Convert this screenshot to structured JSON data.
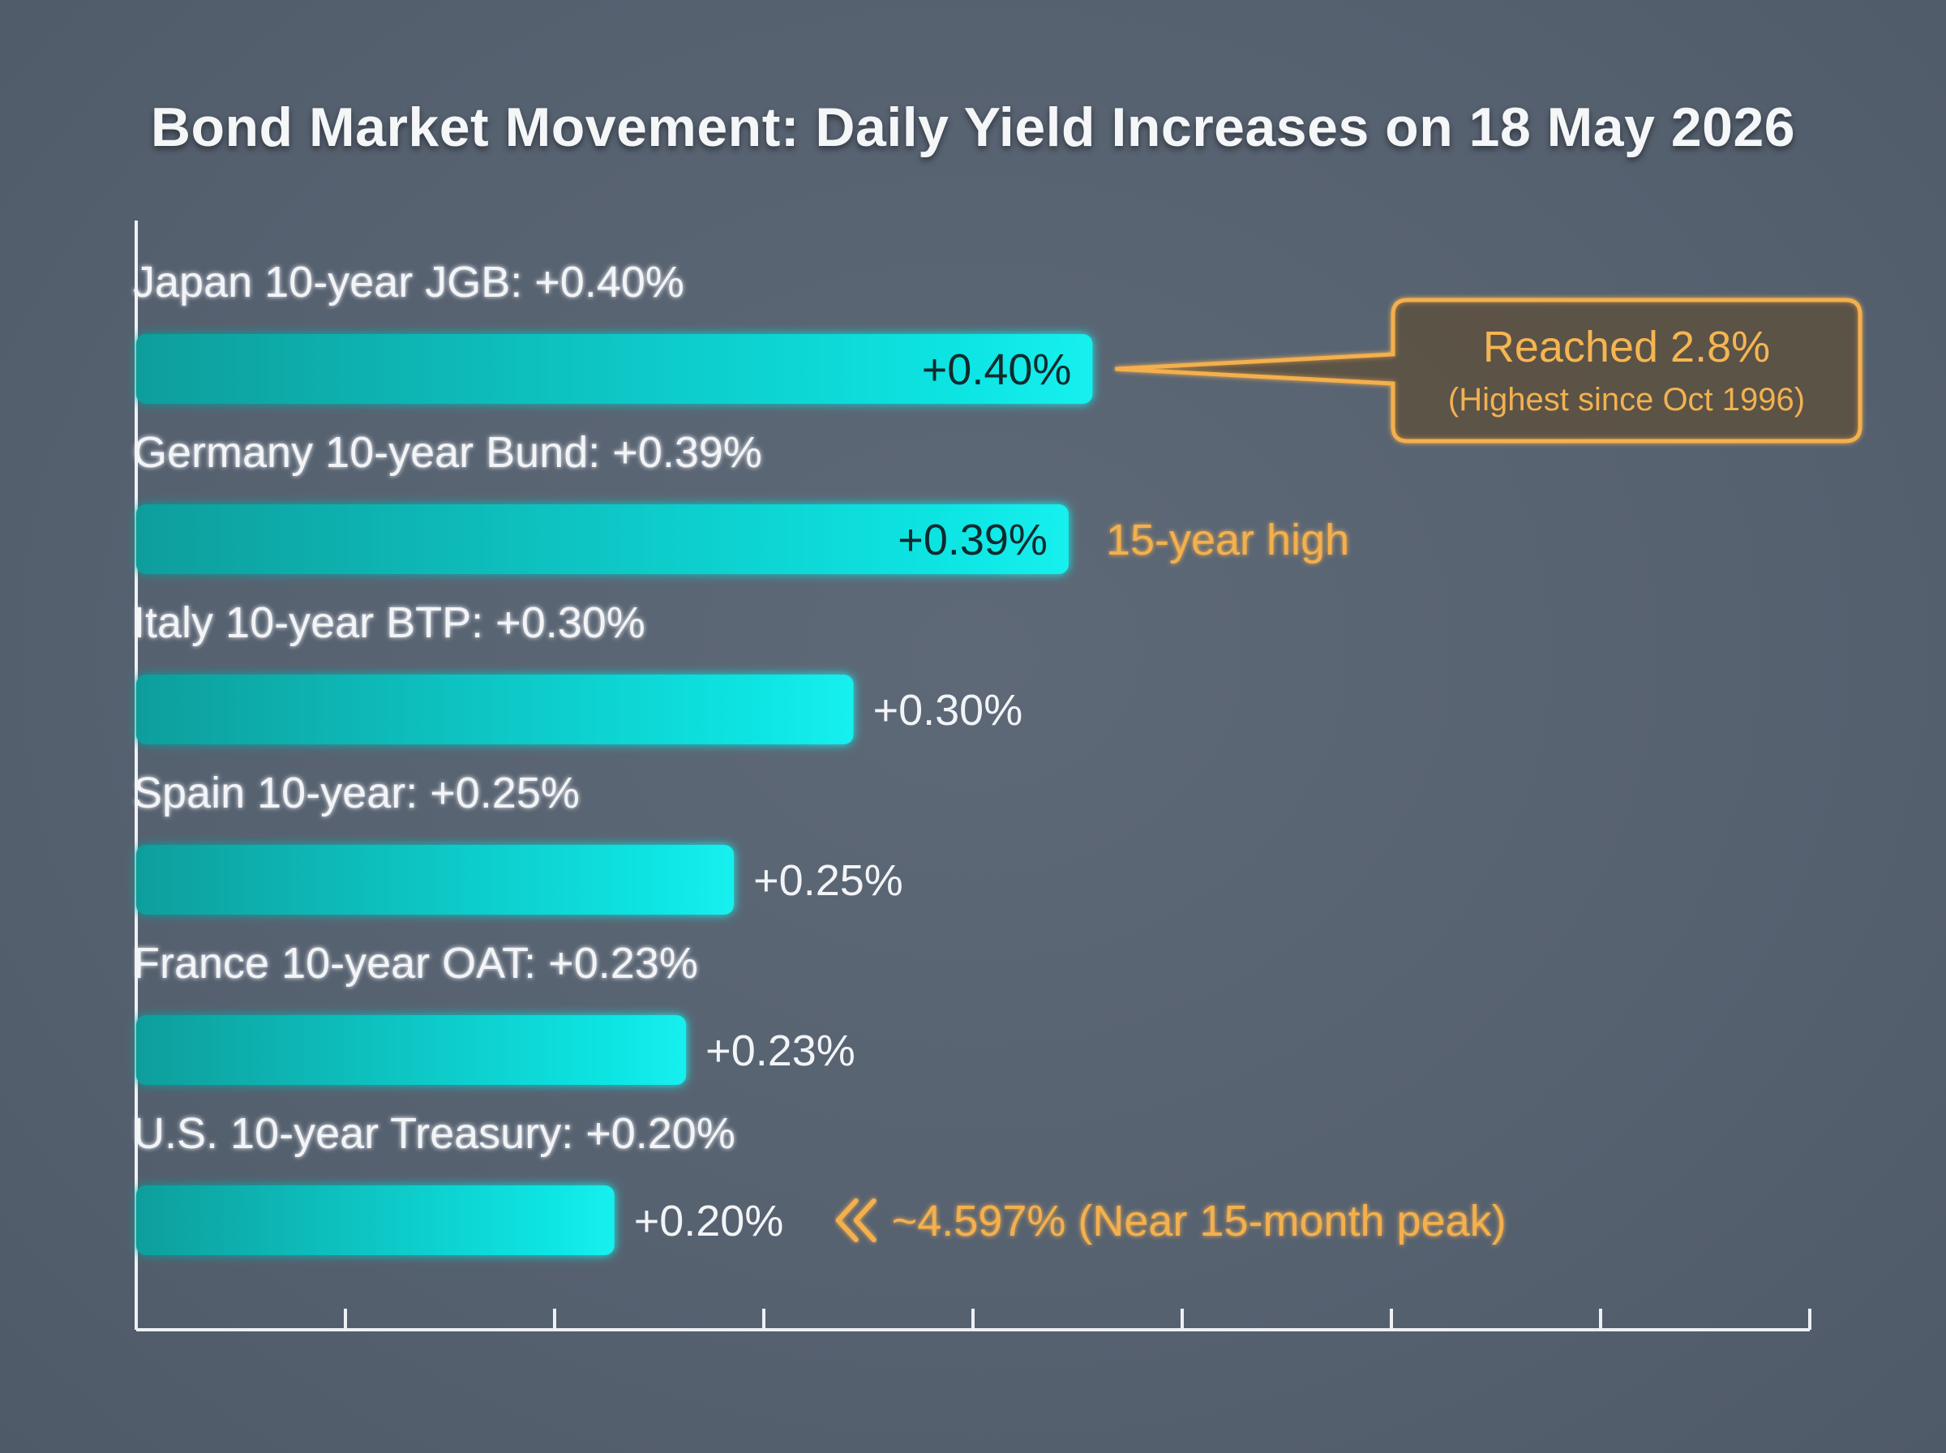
{
  "chart_data": {
    "type": "bar",
    "orientation": "horizontal",
    "title": "Bond Market Movement: Daily Yield Increases on 18 May 2026",
    "categories": [
      "Japan 10-year JGB: +0.40%",
      "Germany 10-year Bund: +0.39%",
      "Italy 10-year BTP: +0.30%",
      "Spain 10-year: +0.25%",
      "France 10-year OAT: +0.23%",
      "U.S. 10-year Treasury: +0.20%"
    ],
    "values": [
      0.4,
      0.39,
      0.3,
      0.25,
      0.23,
      0.2
    ],
    "value_labels": [
      "+0.40%",
      "+0.39%",
      "+0.30%",
      "+0.25%",
      "+0.23%",
      "+0.20%"
    ],
    "xlim": [
      0,
      0.7
    ],
    "x_ticks": 8,
    "grid": false,
    "annotations": {
      "japan_box_title": "Reached 2.8%",
      "japan_box_subtitle": "(Highest since Oct 1996)",
      "germany_note": "15-year high",
      "us_note": "~4.597% (Near 15-month peak)"
    }
  },
  "colors": {
    "bar_light": "#12f0ee",
    "bar_dark": "#0aa9a6",
    "accent": "#f4b04e",
    "background": "#56616f",
    "text": "#f2f4f7"
  }
}
